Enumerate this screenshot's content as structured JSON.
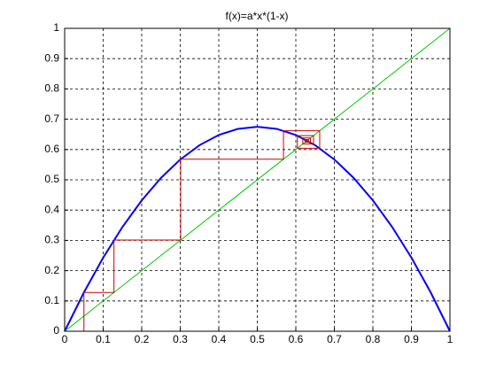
{
  "chart_data": {
    "type": "line",
    "title": "f(x)=a*x*(1-x)",
    "xlim": [
      0,
      1
    ],
    "ylim": [
      0,
      1
    ],
    "xticks": [
      0,
      0.1,
      0.2,
      0.3,
      0.4,
      0.5,
      0.6,
      0.7,
      0.8,
      0.9,
      1
    ],
    "yticks": [
      0,
      0.1,
      0.2,
      0.3,
      0.4,
      0.5,
      0.6,
      0.7,
      0.8,
      0.9,
      1
    ],
    "grid": true,
    "series": [
      {
        "color": "#0000ff",
        "width": 2,
        "x": [
          0,
          0.05,
          0.1,
          0.15,
          0.2,
          0.25,
          0.3,
          0.35,
          0.4,
          0.45,
          0.5,
          0.55,
          0.6,
          0.65,
          0.7,
          0.75,
          0.8,
          0.85,
          0.9,
          0.95,
          1
        ],
        "values": [
          0,
          0.12825,
          0.243,
          0.34425,
          0.432,
          0.50625,
          0.567,
          0.61425,
          0.648,
          0.66825,
          0.675,
          0.66825,
          0.648,
          0.61425,
          0.567,
          0.50625,
          0.432,
          0.34425,
          0.243,
          0.12825,
          0
        ]
      },
      {
        "color": "#00cc00",
        "width": 1,
        "x": [
          0,
          1
        ],
        "values": [
          0,
          1
        ]
      },
      {
        "color": "#cc0000",
        "width": 1,
        "x": [
          0.05,
          0.05,
          0.128,
          0.128,
          0.301,
          0.301,
          0.568,
          0.568,
          0.662,
          0.662,
          0.604,
          0.604,
          0.646,
          0.646,
          0.618,
          0.618,
          0.638,
          0.638,
          0.624,
          0.624,
          0.633,
          0.633,
          0.627,
          0.627
        ],
        "values": [
          0,
          0.128,
          0.128,
          0.301,
          0.301,
          0.568,
          0.568,
          0.662,
          0.662,
          0.604,
          0.604,
          0.646,
          0.646,
          0.618,
          0.618,
          0.638,
          0.638,
          0.624,
          0.624,
          0.633,
          0.633,
          0.627,
          0.627,
          0.63
        ]
      }
    ]
  }
}
